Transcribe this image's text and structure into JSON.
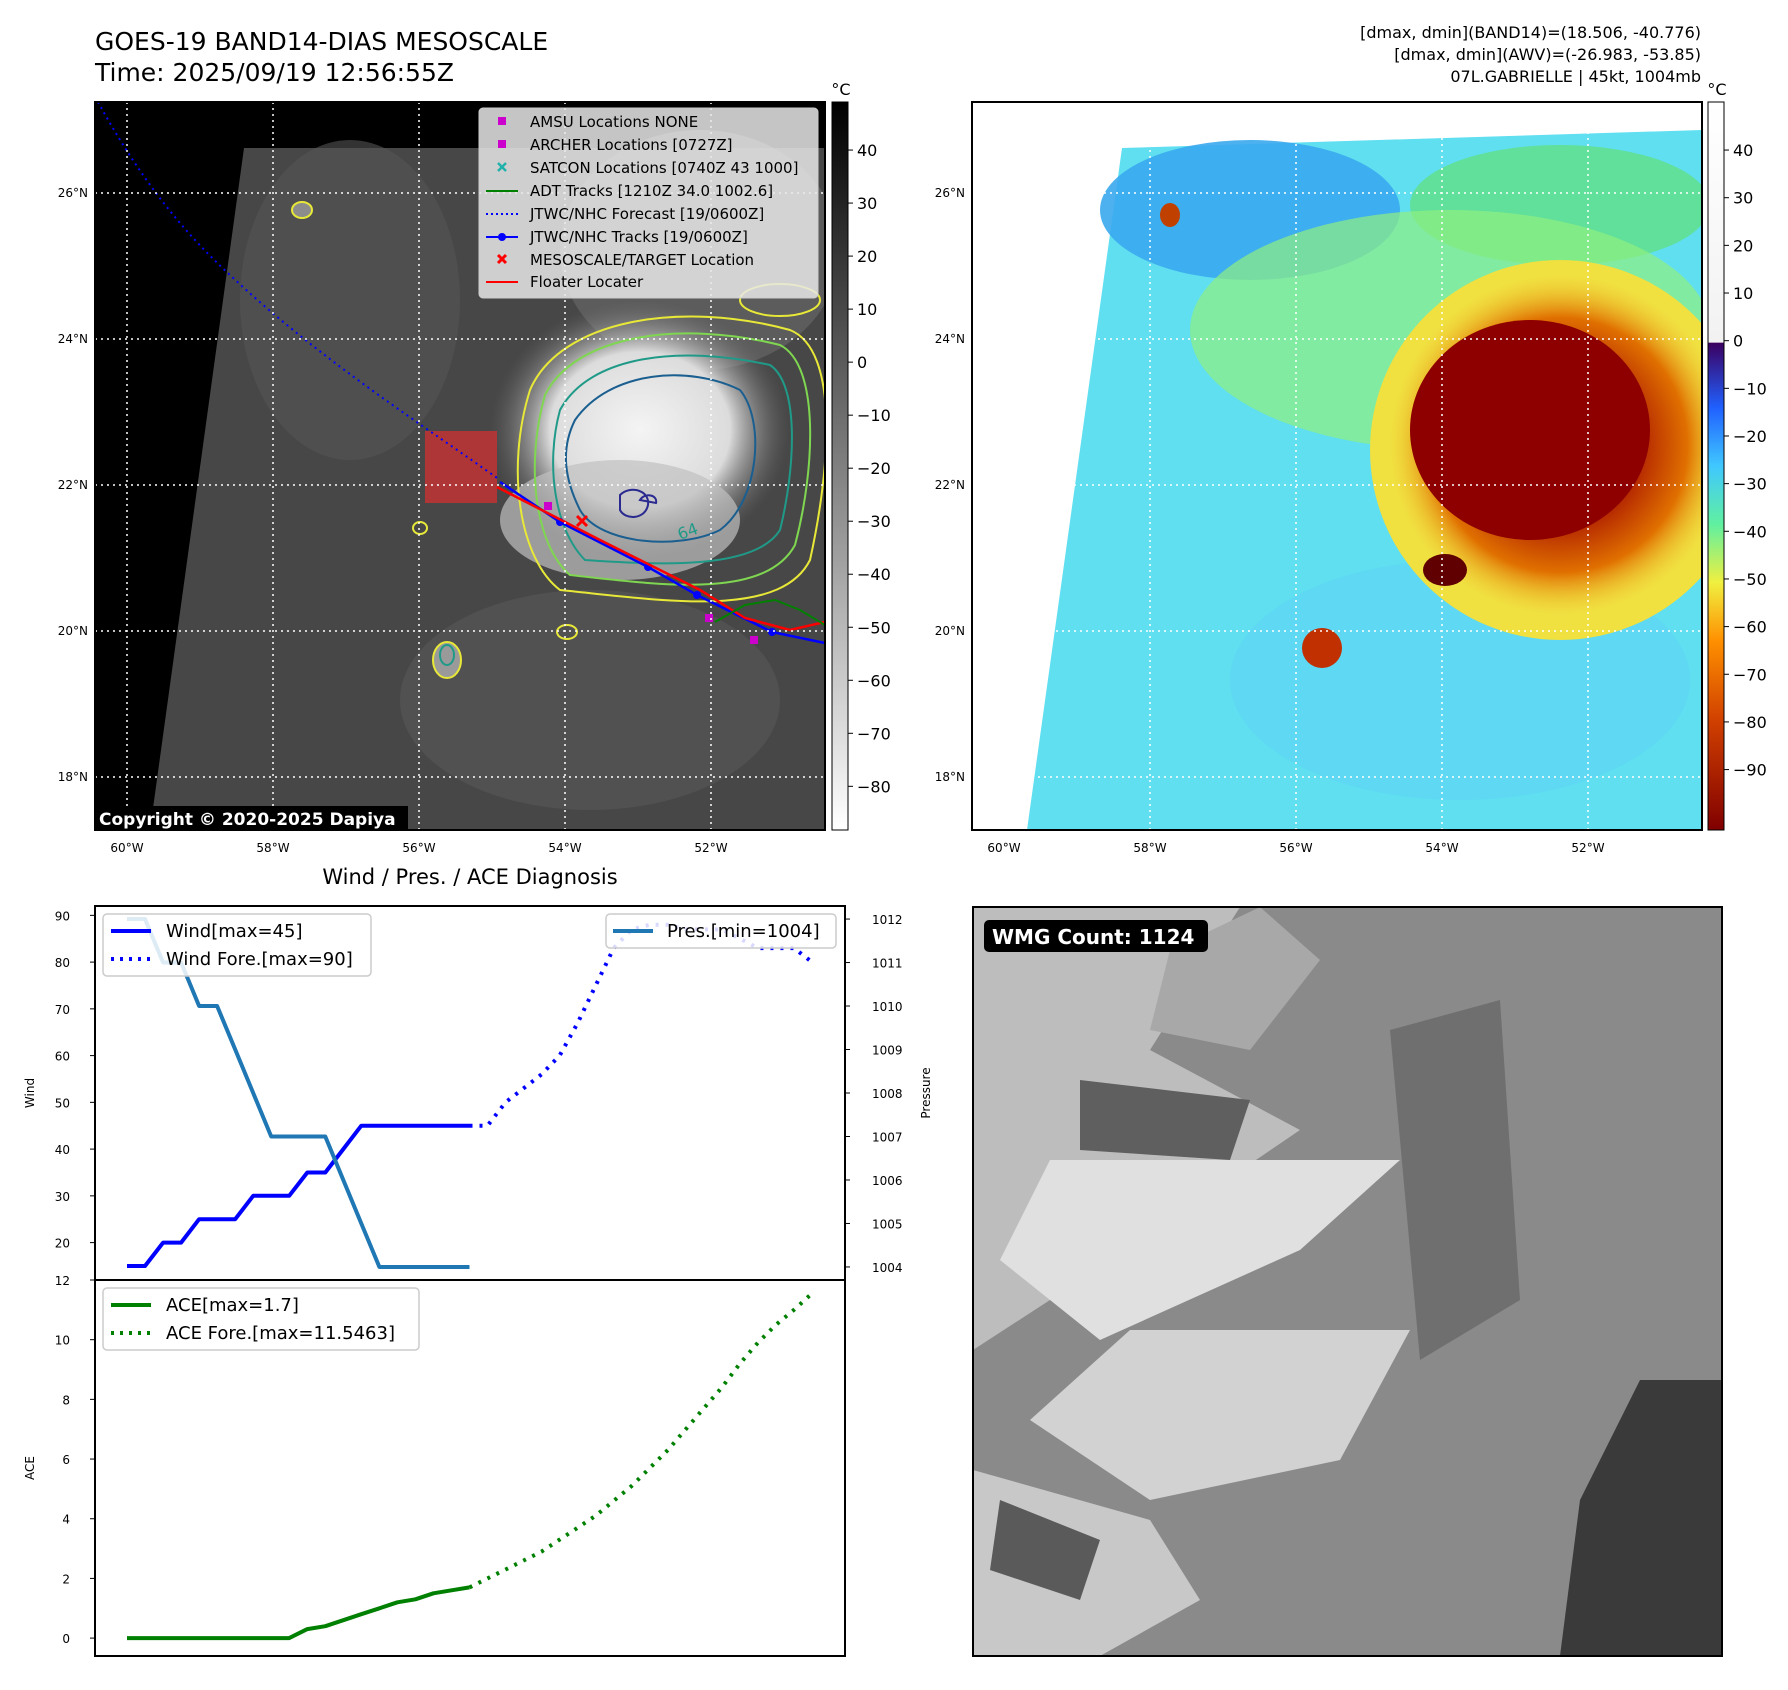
{
  "header": {
    "title": "GOES-19 BAND14-DIAS MESOSCALE",
    "time": "Time: 2025/09/19 12:56:55Z",
    "info_lines": [
      "[dmax, dmin](BAND14)=(18.506, -40.776)",
      "[dmax, dmin](AWV)=(-26.983, -53.85)",
      "07L.GABRIELLE | 45kt, 1004mb"
    ]
  },
  "map_panels": {
    "lat_labels": [
      "26°N",
      "24°N",
      "22°N",
      "20°N",
      "18°N"
    ],
    "lon_labels": [
      "60°W",
      "58°W",
      "56°W",
      "54°W",
      "52°W"
    ],
    "copyright": "Copyright © 2020-2025 Dapiya",
    "contour_label": "64",
    "left_colorbar": {
      "unit": "°C",
      "ticks": [
        "40",
        "30",
        "20",
        "10",
        "0",
        "−10",
        "−20",
        "−30",
        "−40",
        "−50",
        "−60",
        "−70",
        "−80"
      ]
    },
    "right_colorbar": {
      "unit": "°C",
      "ticks": [
        "40",
        "30",
        "20",
        "10",
        "0",
        "−10",
        "−20",
        "−30",
        "−40",
        "−50",
        "−60",
        "−70",
        "−80",
        "−90"
      ]
    },
    "legend": [
      {
        "label": "AMSU Locations NONE",
        "marker": "square",
        "color": "#cc00cc"
      },
      {
        "label": "ARCHER Locations [0727Z]",
        "marker": "square",
        "color": "#cc00cc"
      },
      {
        "label": "SATCON Locations [0740Z 43 1000]",
        "marker": "x",
        "color": "#20b2aa"
      },
      {
        "label": "ADT Tracks [1210Z 34.0 1002.6]",
        "marker": "line",
        "color": "#008000"
      },
      {
        "label": "JTWC/NHC Forecast [19/0600Z]",
        "marker": "dotted",
        "color": "#0000ff"
      },
      {
        "label": "JTWC/NHC Tracks [19/0600Z]",
        "marker": "line-dot",
        "color": "#0000ff"
      },
      {
        "label": "MESOSCALE/TARGET Location",
        "marker": "x",
        "color": "#ff0000"
      },
      {
        "label": "Floater Locater",
        "marker": "line",
        "color": "#ff0000"
      }
    ]
  },
  "diagnosis": {
    "title": "Wind / Pres. / ACE Diagnosis",
    "wind_ylabel": "Wind",
    "pressure_ylabel": "Pressure",
    "ace_ylabel": "ACE",
    "legend_wind": "Wind[max=45]",
    "legend_wind_fore": "Wind Fore.[max=90]",
    "legend_pres": "Pres.[min=1004]",
    "legend_ace": "ACE[max=1.7]",
    "legend_ace_fore": "ACE Fore.[max=11.5463]"
  },
  "wmg": {
    "label": "WMG Count: 1124"
  },
  "chart_data": [
    {
      "type": "line",
      "subplot": "wind-pressure",
      "x": [
        0,
        1,
        2,
        3,
        4,
        5,
        6,
        7,
        8,
        9,
        10,
        11,
        12,
        13,
        14,
        15,
        16,
        17,
        18,
        19
      ],
      "series": [
        {
          "name": "Wind[max=45]",
          "axis": "left",
          "style": "solid",
          "color": "#0000ff",
          "values": [
            15,
            15,
            20,
            20,
            25,
            25,
            25,
            30,
            30,
            30,
            35,
            35,
            40,
            45,
            45,
            45,
            45,
            45,
            45,
            45
          ]
        },
        {
          "name": "Wind Fore.[max=90]",
          "axis": "left",
          "style": "dotted",
          "color": "#0000ff",
          "x": [
            19,
            20,
            21,
            22,
            23,
            24,
            25,
            26,
            27,
            28,
            29,
            30,
            31,
            32,
            33,
            34,
            35,
            36,
            37,
            38
          ],
          "values": [
            45,
            45,
            50,
            53,
            56,
            60,
            67,
            75,
            83,
            87,
            88,
            88,
            87,
            87,
            87,
            85,
            83,
            83,
            83,
            80
          ]
        },
        {
          "name": "Pres.[min=1004]",
          "axis": "right",
          "style": "solid",
          "color": "#1f77b4",
          "values": [
            1012,
            1012,
            1011,
            1011,
            1010,
            1010,
            1009,
            1008,
            1007,
            1007,
            1007,
            1007,
            1006,
            1005,
            1004,
            1004,
            1004,
            1004,
            1004,
            1004
          ]
        }
      ],
      "ylabel": "Wind",
      "ylim": [
        12,
        92
      ],
      "yticks": [
        20,
        30,
        40,
        50,
        60,
        70,
        80,
        90
      ],
      "y2label": "Pressure",
      "y2lim": [
        1003.7,
        1012.3
      ],
      "y2ticks": [
        1004,
        1005,
        1006,
        1007,
        1008,
        1009,
        1010,
        1011,
        1012
      ],
      "grid": false,
      "legend_position": [
        "upper left",
        "upper right"
      ]
    },
    {
      "type": "line",
      "subplot": "ace",
      "x": [
        0,
        1,
        2,
        3,
        4,
        5,
        6,
        7,
        8,
        9,
        10,
        11,
        12,
        13,
        14,
        15,
        16,
        17,
        18,
        19
      ],
      "series": [
        {
          "name": "ACE[max=1.7]",
          "style": "solid",
          "color": "#008000",
          "values": [
            0,
            0,
            0,
            0,
            0,
            0,
            0,
            0,
            0,
            0,
            0.3,
            0.4,
            0.6,
            0.8,
            1.0,
            1.2,
            1.3,
            1.5,
            1.6,
            1.7
          ]
        },
        {
          "name": "ACE Fore.[max=11.5463]",
          "style": "dotted",
          "color": "#008000",
          "x": [
            19,
            20,
            21,
            22,
            23,
            24,
            25,
            26,
            27,
            28,
            29,
            30,
            31,
            32,
            33,
            34,
            35,
            36,
            37,
            38
          ],
          "values": [
            1.7,
            2.0,
            2.3,
            2.6,
            2.9,
            3.3,
            3.7,
            4.1,
            4.6,
            5.1,
            5.7,
            6.3,
            7.0,
            7.7,
            8.4,
            9.2,
            9.9,
            10.5,
            11.0,
            11.55
          ]
        }
      ],
      "ylabel": "ACE",
      "ylim": [
        -0.6,
        12
      ],
      "yticks": [
        0,
        2,
        4,
        6,
        8,
        10,
        12
      ],
      "grid": false,
      "legend_position": "upper left"
    }
  ]
}
